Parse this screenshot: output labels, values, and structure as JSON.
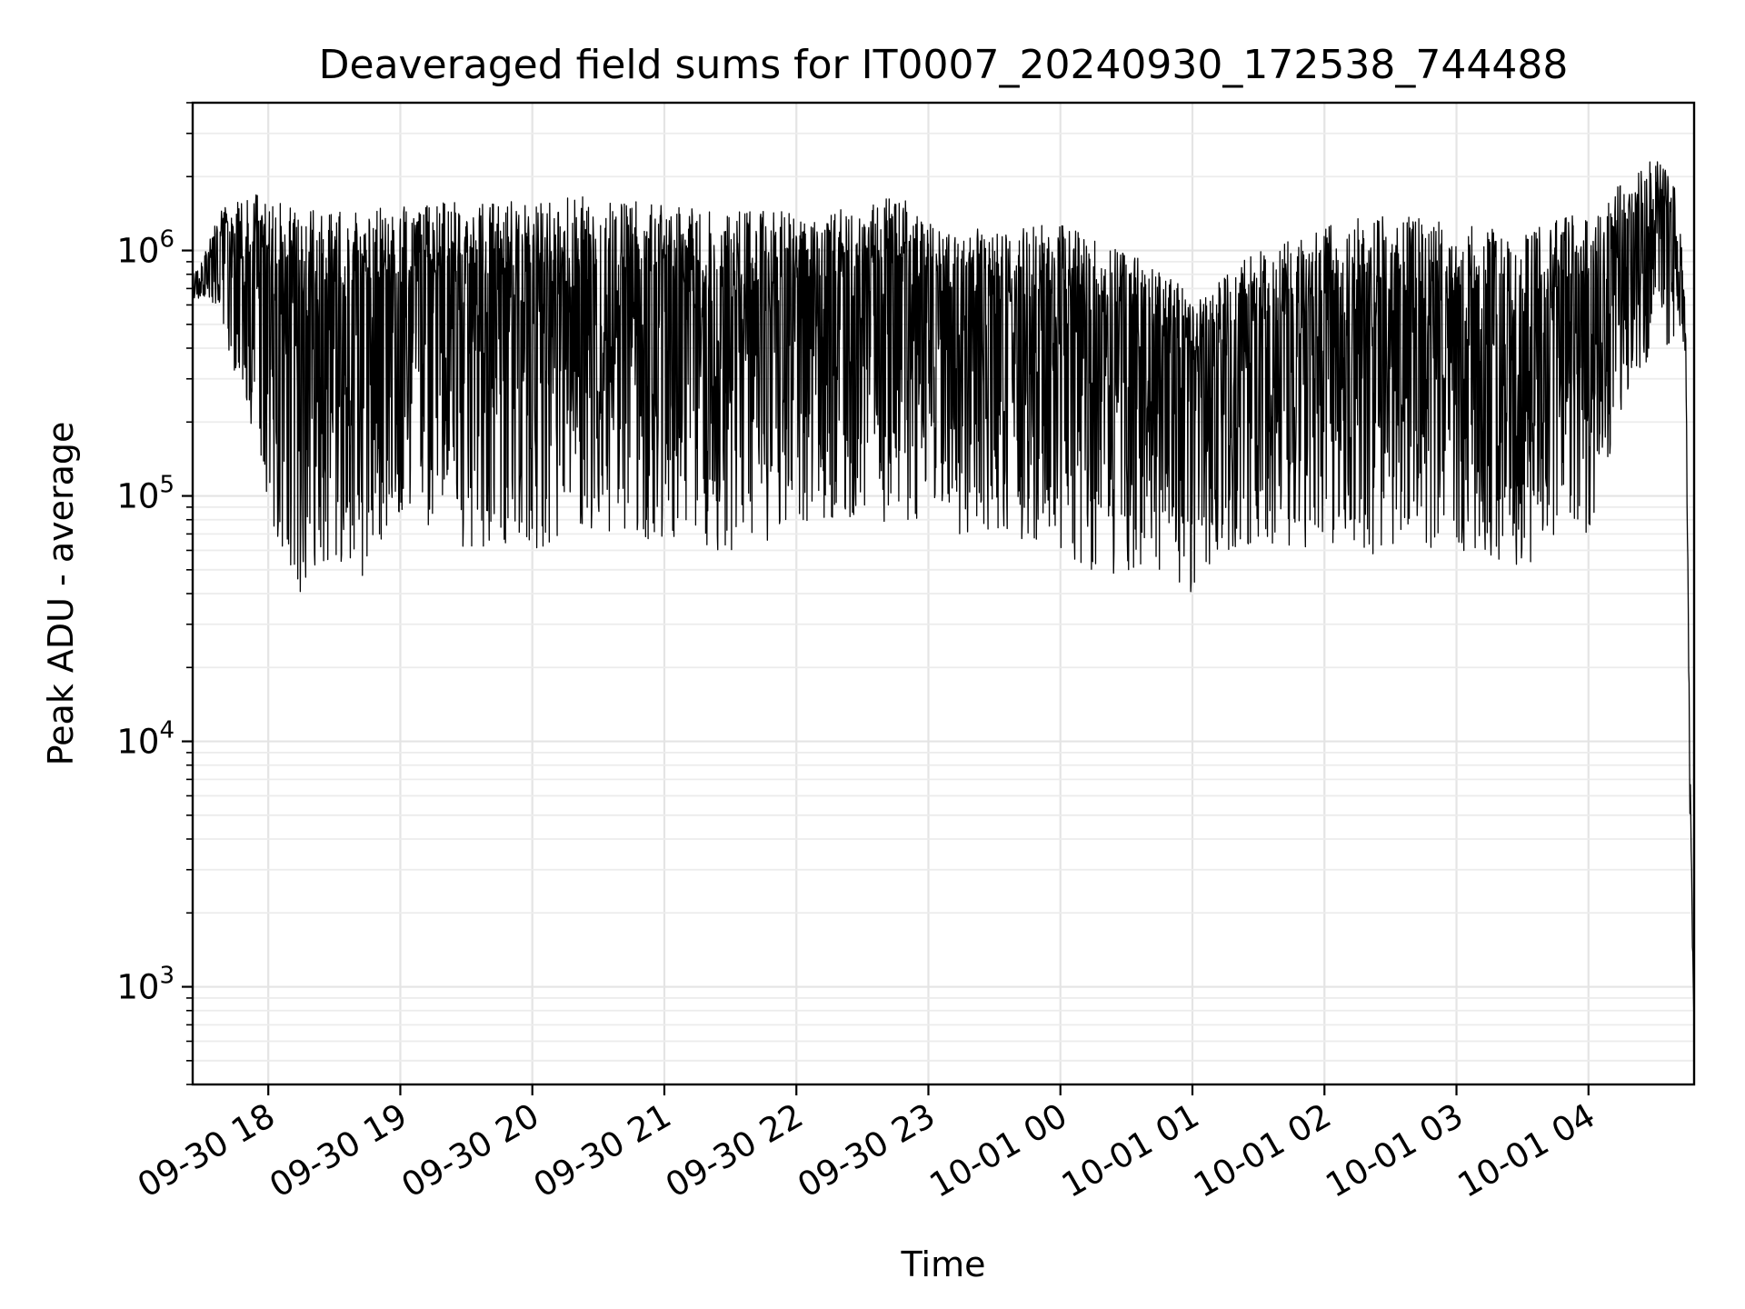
{
  "chart_data": {
    "type": "line",
    "title": "Deaveraged field sums for IT0007_20240930_172538_744488",
    "xlabel": "Time",
    "ylabel": "Peak ADU - average",
    "yscale": "log",
    "ylim": [
      400,
      4000000
    ],
    "xlim": [
      "2024-09-30 17:25:38",
      "2024-10-01 04:48:00"
    ],
    "grid": true,
    "legend": "none",
    "line_color": "#000000",
    "x_ticks": [
      {
        "label": "09-30 18",
        "time": "2024-09-30 18:00"
      },
      {
        "label": "09-30 19",
        "time": "2024-09-30 19:00"
      },
      {
        "label": "09-30 20",
        "time": "2024-09-30 20:00"
      },
      {
        "label": "09-30 21",
        "time": "2024-09-30 21:00"
      },
      {
        "label": "09-30 22",
        "time": "2024-09-30 22:00"
      },
      {
        "label": "09-30 23",
        "time": "2024-09-30 23:00"
      },
      {
        "label": "10-01 00",
        "time": "2024-10-01 00:00"
      },
      {
        "label": "10-01 01",
        "time": "2024-10-01 01:00"
      },
      {
        "label": "10-01 02",
        "time": "2024-10-01 02:00"
      },
      {
        "label": "10-01 03",
        "time": "2024-10-01 03:00"
      },
      {
        "label": "10-01 04",
        "time": "2024-10-01 04:00"
      }
    ],
    "y_ticks": [
      {
        "base": "10",
        "exp": "3",
        "value": 1000
      },
      {
        "base": "10",
        "exp": "4",
        "value": 10000
      },
      {
        "base": "10",
        "exp": "5",
        "value": 100000
      },
      {
        "base": "10",
        "exp": "6",
        "value": 1000000
      }
    ],
    "series": [
      {
        "envelope_upper": [
          [
            "2024-09-30 17:25:38",
            800000
          ],
          [
            "2024-09-30 17:30",
            900000
          ],
          [
            "2024-09-30 17:38",
            1500000
          ],
          [
            "2024-09-30 17:45",
            1600000
          ],
          [
            "2024-09-30 17:55",
            1700000
          ],
          [
            "2024-09-30 18:10",
            1500000
          ],
          [
            "2024-09-30 18:30",
            1500000
          ],
          [
            "2024-09-30 19:00",
            1500000
          ],
          [
            "2024-09-30 19:30",
            1600000
          ],
          [
            "2024-09-30 20:00",
            1600000
          ],
          [
            "2024-09-30 20:30",
            1700000
          ],
          [
            "2024-09-30 21:00",
            1550000
          ],
          [
            "2024-09-30 21:30",
            1450000
          ],
          [
            "2024-09-30 22:00",
            1450000
          ],
          [
            "2024-09-30 22:30",
            1500000
          ],
          [
            "2024-09-30 22:45",
            1750000
          ],
          [
            "2024-09-30 23:00",
            1300000
          ],
          [
            "2024-09-30 23:30",
            1200000
          ],
          [
            "2024-10-01 00:00",
            1300000
          ],
          [
            "2024-10-01 00:30",
            1000000
          ],
          [
            "2024-10-01 00:50",
            800000
          ],
          [
            "2024-10-01 01:00",
            650000
          ],
          [
            "2024-10-01 01:30",
            1000000
          ],
          [
            "2024-10-01 02:00",
            1300000
          ],
          [
            "2024-10-01 02:30",
            1400000
          ],
          [
            "2024-10-01 03:00",
            1300000
          ],
          [
            "2024-10-01 03:30",
            1200000
          ],
          [
            "2024-10-01 04:00",
            1500000
          ],
          [
            "2024-10-01 04:20",
            2000000
          ],
          [
            "2024-10-01 04:30",
            2500000
          ],
          [
            "2024-10-01 04:40",
            1800000
          ],
          [
            "2024-10-01 04:44",
            700000
          ],
          [
            "2024-10-01 04:46",
            10000
          ],
          [
            "2024-10-01 04:48",
            700
          ]
        ],
        "envelope_lower": [
          [
            "2024-09-30 17:25:38",
            600000
          ],
          [
            "2024-09-30 17:30",
            650000
          ],
          [
            "2024-09-30 17:38",
            500000
          ],
          [
            "2024-09-30 17:45",
            300000
          ],
          [
            "2024-09-30 17:55",
            150000
          ],
          [
            "2024-09-30 18:05",
            60000
          ],
          [
            "2024-09-30 18:15",
            40000
          ],
          [
            "2024-09-30 18:30",
            55000
          ],
          [
            "2024-09-30 18:45",
            45000
          ],
          [
            "2024-09-30 19:00",
            80000
          ],
          [
            "2024-09-30 19:30",
            60000
          ],
          [
            "2024-09-30 20:00",
            60000
          ],
          [
            "2024-09-30 20:30",
            70000
          ],
          [
            "2024-09-30 21:00",
            65000
          ],
          [
            "2024-09-30 21:30",
            55000
          ],
          [
            "2024-09-30 22:00",
            75000
          ],
          [
            "2024-09-30 22:30",
            80000
          ],
          [
            "2024-09-30 23:00",
            75000
          ],
          [
            "2024-09-30 23:30",
            65000
          ],
          [
            "2024-10-01 00:00",
            60000
          ],
          [
            "2024-10-01 00:15",
            45000
          ],
          [
            "2024-10-01 00:45",
            50000
          ],
          [
            "2024-10-01 01:00",
            40000
          ],
          [
            "2024-10-01 01:30",
            65000
          ],
          [
            "2024-10-01 02:00",
            60000
          ],
          [
            "2024-10-01 02:30",
            55000
          ],
          [
            "2024-10-01 03:00",
            60000
          ],
          [
            "2024-10-01 03:30",
            50000
          ],
          [
            "2024-10-01 04:00",
            70000
          ],
          [
            "2024-10-01 04:20",
            300000
          ],
          [
            "2024-10-01 04:40",
            450000
          ],
          [
            "2024-10-01 04:44",
            300000
          ],
          [
            "2024-10-01 04:46",
            5000
          ],
          [
            "2024-10-01 04:48",
            650
          ]
        ]
      }
    ]
  }
}
